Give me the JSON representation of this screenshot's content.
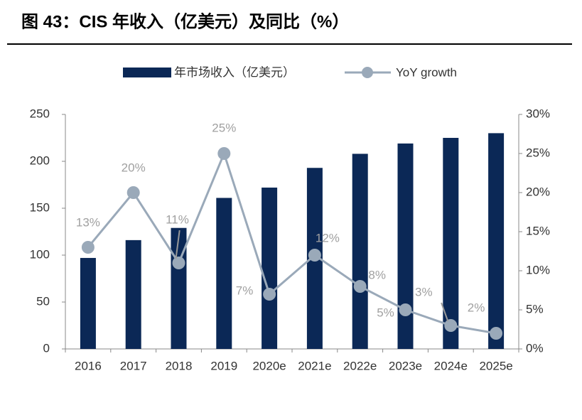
{
  "chart_data": {
    "type": "bar-line",
    "title": "图 43：CIS 年收入（亿美元）及同比（%）",
    "categories": [
      "2016",
      "2017",
      "2018",
      "2019",
      "2020e",
      "2021e",
      "2022e",
      "2023e",
      "2024e",
      "2025e"
    ],
    "series": [
      {
        "name": "年市场收入（亿美元）",
        "type": "bar",
        "color": "#0b2856",
        "values": [
          97,
          116,
          129,
          161,
          172,
          193,
          208,
          219,
          225,
          230
        ]
      },
      {
        "name": "YoY growth",
        "type": "line",
        "axis": "y2",
        "color": "#9aa9b9",
        "values": [
          13,
          20,
          11,
          25,
          7,
          12,
          8,
          5,
          3,
          2
        ],
        "value_labels": [
          "13%",
          "20%",
          "11%",
          "25%",
          "7%",
          "12%",
          "8%",
          "5%",
          "3%",
          "2%"
        ]
      }
    ],
    "ylim": [
      0,
      250
    ],
    "yticks": [
      0,
      50,
      100,
      150,
      200,
      250
    ],
    "y2lim": [
      0,
      30
    ],
    "y2ticks": [
      {
        "value": 0,
        "label": "0%"
      },
      {
        "value": 5,
        "label": "5%"
      },
      {
        "value": 10,
        "label": "10%"
      },
      {
        "value": 15,
        "label": "15%"
      },
      {
        "value": 20,
        "label": "20%"
      },
      {
        "value": 25,
        "label": "25%"
      },
      {
        "value": 30,
        "label": "30%"
      }
    ],
    "legend": "top"
  }
}
